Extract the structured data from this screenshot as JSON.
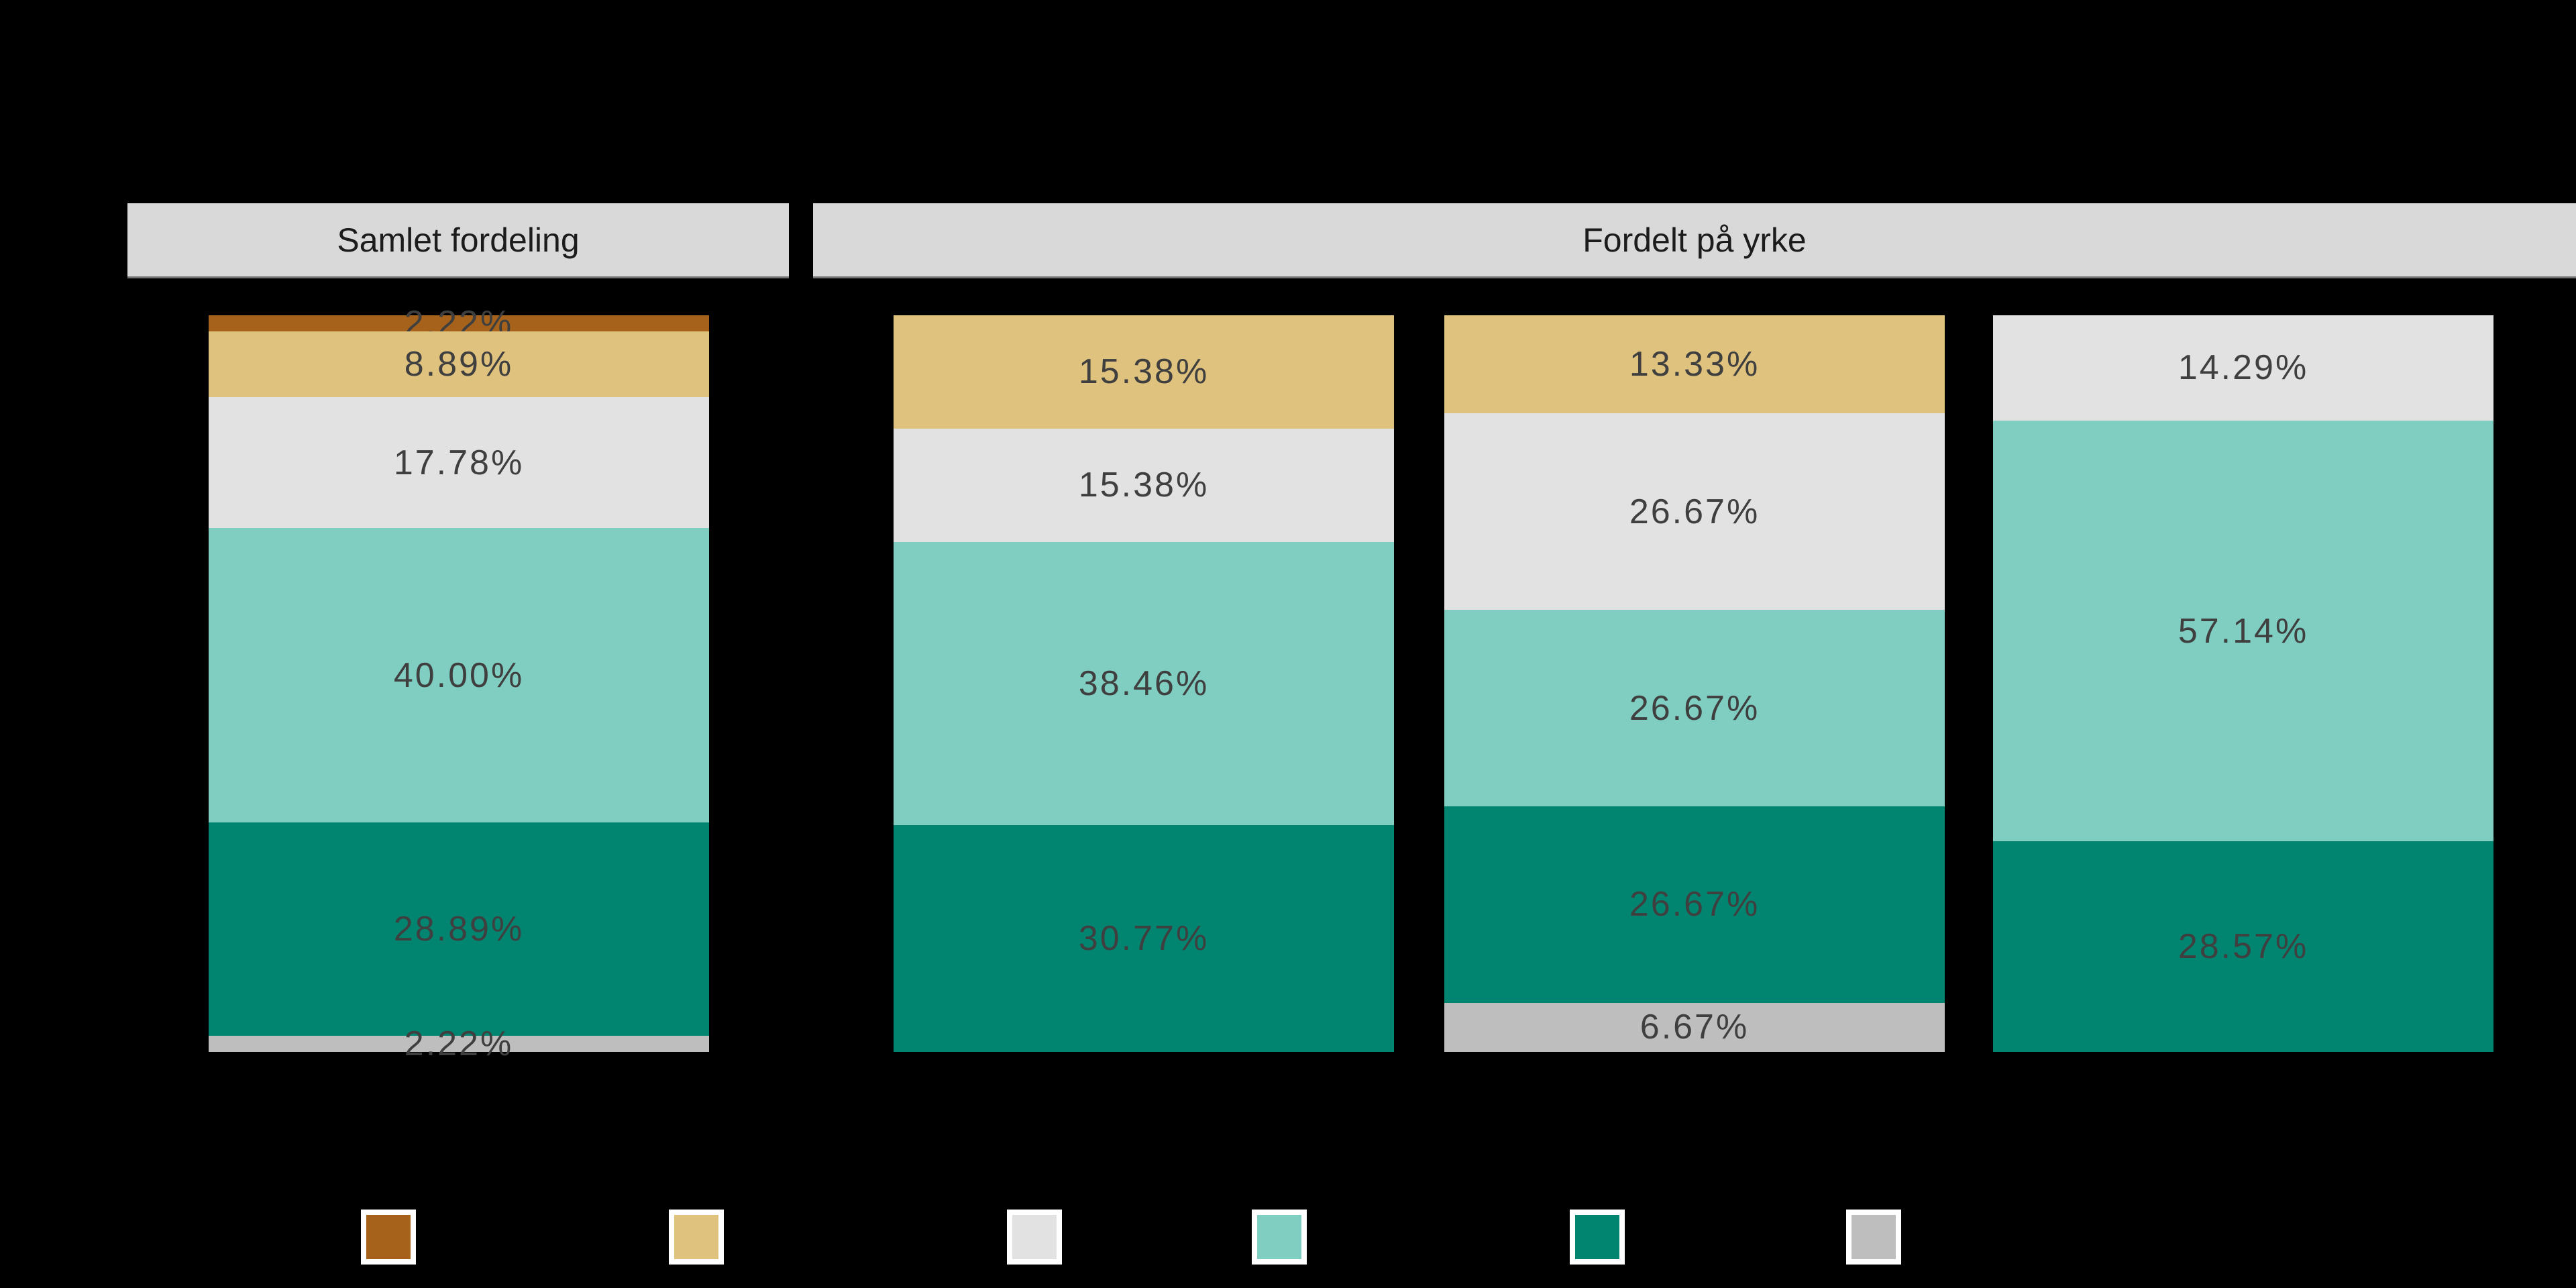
{
  "facets": [
    {
      "label": "Samlet fordeling"
    },
    {
      "label": "Fordelt på yrke"
    }
  ],
  "chart_data": {
    "type": "bar",
    "variant": "100%-stacked vertical bars, faceted",
    "title": "",
    "facet_titles": [
      "Samlet fordeling",
      "Fordelt på yrke"
    ],
    "background": "#000000",
    "strip_background": "#d9d9d9",
    "label_color": "#3f3f3f",
    "value_axis_range": [
      0,
      100
    ],
    "axis_labels_visible": false,
    "legend_labels_visible": false,
    "palette": {
      "brown": "#a6611a",
      "tan": "#dfc27d",
      "light_grey": "#e2e2e2",
      "teal_light": "#80cdc1",
      "teal_dark": "#018571",
      "grey": "#bebebe"
    },
    "bars": [
      {
        "facet": "Samlet fordeling",
        "segments": [
          {
            "color": "brown",
            "value": 2.22,
            "label": "2.22%"
          },
          {
            "color": "tan",
            "value": 8.89,
            "label": "8.89%"
          },
          {
            "color": "light_grey",
            "value": 17.78,
            "label": "17.78%"
          },
          {
            "color": "teal_light",
            "value": 40.0,
            "label": "40.00%"
          },
          {
            "color": "teal_dark",
            "value": 28.89,
            "label": "28.89%"
          },
          {
            "color": "grey",
            "value": 2.22,
            "label": "2.22%"
          }
        ]
      },
      {
        "facet": "Fordelt på yrke",
        "segments": [
          {
            "color": "tan",
            "value": 15.38,
            "label": "15.38%"
          },
          {
            "color": "light_grey",
            "value": 15.38,
            "label": "15.38%"
          },
          {
            "color": "teal_light",
            "value": 38.46,
            "label": "38.46%"
          },
          {
            "color": "teal_dark",
            "value": 30.77,
            "label": "30.77%"
          }
        ]
      },
      {
        "facet": "Fordelt på yrke",
        "segments": [
          {
            "color": "tan",
            "value": 13.33,
            "label": "13.33%"
          },
          {
            "color": "light_grey",
            "value": 26.67,
            "label": "26.67%"
          },
          {
            "color": "teal_light",
            "value": 26.67,
            "label": "26.67%"
          },
          {
            "color": "teal_dark",
            "value": 26.67,
            "label": "26.67%"
          },
          {
            "color": "grey",
            "value": 6.67,
            "label": "6.67%"
          }
        ]
      },
      {
        "facet": "Fordelt på yrke",
        "segments": [
          {
            "color": "light_grey",
            "value": 14.29,
            "label": "14.29%"
          },
          {
            "color": "teal_light",
            "value": 57.14,
            "label": "57.14%"
          },
          {
            "color": "teal_dark",
            "value": 28.57,
            "label": "28.57%"
          }
        ]
      }
    ],
    "legend": {
      "swatch_colors": [
        "#a6611a",
        "#dfc27d",
        "#e2e2e2",
        "#80cdc1",
        "#018571",
        "#bebebe"
      ]
    }
  }
}
